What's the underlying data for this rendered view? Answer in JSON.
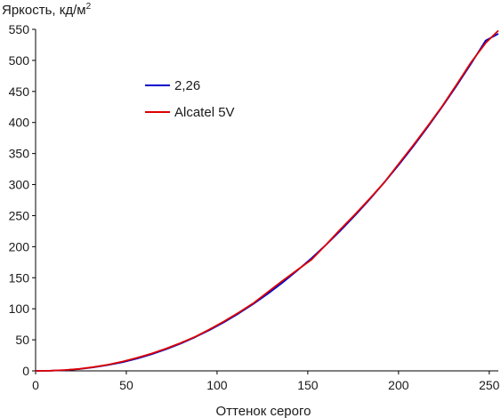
{
  "chart_data": {
    "type": "line",
    "title": "",
    "ylabel": "Яркость, кд/м",
    "ylabel_sup": "2",
    "xlabel": "Оттенок серого",
    "xlim": [
      0,
      255
    ],
    "ylim": [
      0,
      550
    ],
    "xticks": [
      0,
      50,
      100,
      150,
      200,
      250
    ],
    "yticks": [
      0,
      50,
      100,
      150,
      200,
      250,
      300,
      350,
      400,
      450,
      500,
      550
    ],
    "grid": false,
    "legend_position": "upper-left",
    "series": [
      {
        "name": "2,26",
        "color": "#0000cc",
        "x": [
          0,
          8,
          16,
          24,
          32,
          40,
          48,
          56,
          64,
          72,
          80,
          88,
          96,
          104,
          112,
          120,
          128,
          136,
          144,
          152,
          160,
          168,
          176,
          184,
          192,
          200,
          208,
          216,
          224,
          232,
          240,
          248,
          255
        ],
        "y": [
          0,
          0.2,
          1.1,
          2.9,
          5.7,
          9.4,
          14.1,
          19.9,
          26.8,
          34.8,
          44.0,
          54.4,
          65.9,
          78.6,
          92.6,
          107.8,
          124.2,
          142.0,
          161.0,
          181.3,
          202.9,
          225.9,
          250.2,
          275.9,
          302.9,
          331.3,
          361.2,
          392.4,
          425.1,
          459.2,
          494.8,
          531.8,
          543.0
        ]
      },
      {
        "name": "Alcatel 5V",
        "color": "#dd0000",
        "x": [
          0,
          8,
          16,
          24,
          32,
          40,
          48,
          56,
          64,
          72,
          80,
          88,
          96,
          104,
          112,
          120,
          128,
          136,
          144,
          152,
          160,
          168,
          176,
          184,
          192,
          200,
          208,
          216,
          224,
          232,
          240,
          248,
          255
        ],
        "y": [
          0,
          0.3,
          1.3,
          3.2,
          6.2,
          10.0,
          15.0,
          21.0,
          28.0,
          36.0,
          45.0,
          55.0,
          67.0,
          80.0,
          94.0,
          109.0,
          127.0,
          145.0,
          162.0,
          179.0,
          203.0,
          228.0,
          252.0,
          277.0,
          303.0,
          333.0,
          363.0,
          394.0,
          426.0,
          461.0,
          497.0,
          528.0,
          548.0
        ]
      }
    ]
  }
}
